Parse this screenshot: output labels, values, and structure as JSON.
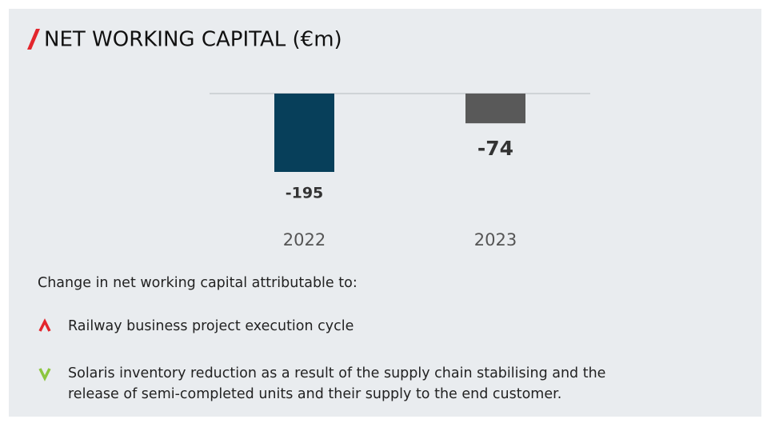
{
  "chart_data": {
    "type": "bar",
    "title": "NET WORKING CAPITAL (€m)",
    "categories": [
      "2022",
      "2023"
    ],
    "values": [
      -195,
      -74
    ],
    "colors": [
      "#073f5a",
      "#595959"
    ]
  },
  "commentary": {
    "intro": "Change in net working capital attributable to:",
    "items": [
      {
        "lines": [
          "Railway business project execution cycle"
        ]
      },
      {
        "lines": [
          "Solaris inventory reduction as a result of the supply chain stabilising and the",
          "release of semi-completed units and their supply to the end customer."
        ]
      }
    ]
  }
}
